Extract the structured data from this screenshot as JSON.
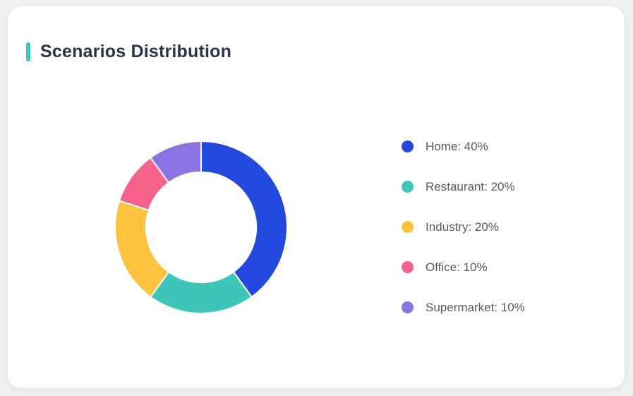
{
  "page": {
    "background_color": "#f0f1f3"
  },
  "card": {
    "title": "Scenarios Distribution",
    "accent_color": "#3fc4b7",
    "background_color": "#ffffff"
  },
  "legend": {
    "items": [
      {
        "label": "Home: 40%",
        "color": "#2248dd"
      },
      {
        "label": "Restaurant: 20%",
        "color": "#3ec6b9"
      },
      {
        "label": "Industry: 20%",
        "color": "#fdc33f"
      },
      {
        "label": "Office: 10%",
        "color": "#f7628c"
      },
      {
        "label": "Supermarket: 10%",
        "color": "#8b72e2"
      }
    ]
  },
  "chart_data": {
    "type": "pie",
    "subtype": "donut",
    "title": "Scenarios Distribution",
    "categories": [
      "Home",
      "Restaurant",
      "Industry",
      "Office",
      "Supermarket"
    ],
    "values": [
      40,
      20,
      20,
      10,
      10
    ],
    "unit": "%",
    "colors": [
      "#2248dd",
      "#3ec6b9",
      "#fdc33f",
      "#f7628c",
      "#8b72e2"
    ],
    "start_angle_deg": 0,
    "direction": "clockwise",
    "inner_radius_ratio": 0.64,
    "slice_border_color": "#ffffff",
    "legend_position": "right"
  }
}
